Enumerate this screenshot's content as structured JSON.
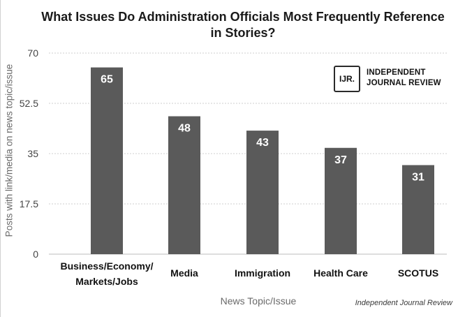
{
  "chart_data": {
    "type": "bar",
    "title": "What Issues Do Administration Officials Most Frequently Reference in Stories?",
    "title_lines": [
      "What Issues Do Administration Officials Most Frequently Reference",
      "in Stories?"
    ],
    "xlabel": "News Topic/Issue",
    "ylabel": "Posts with link/media on news topic/issue",
    "categories": [
      [
        "Business/Economy/",
        "Markets/Jobs"
      ],
      [
        "Media"
      ],
      [
        "Immigration"
      ],
      [
        "Health Care"
      ],
      [
        "SCOTUS"
      ]
    ],
    "values": [
      65,
      48,
      43,
      37,
      31
    ],
    "ylim": [
      0,
      70
    ],
    "yticks": [
      "0",
      "17.5",
      "35",
      "52.5",
      "70"
    ],
    "grid": true,
    "bar_color": "#5a5a5a",
    "legend": "none"
  },
  "logo": {
    "mark": "IJR.",
    "line1": "INDEPENDENT",
    "line2": "JOURNAL REVIEW"
  },
  "source": "Independent Journal Review"
}
